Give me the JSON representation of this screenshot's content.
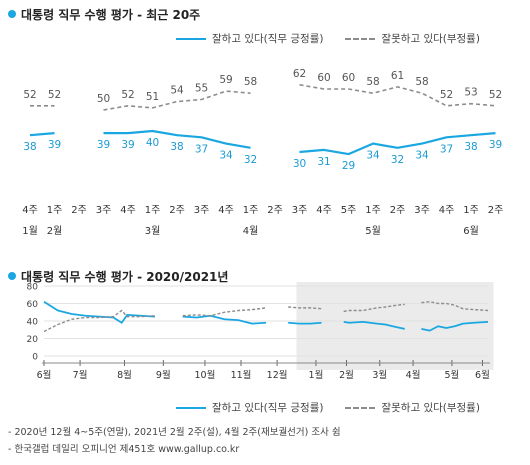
{
  "panel1": {
    "title": "대통령 직무 수행 평가 - 최근 20주",
    "legend_approve": "잘하고 있다(직무 긍정률)",
    "legend_disapprove": "잘못하고 있다(부정률)"
  },
  "panel2": {
    "title": "대통령 직무 수행 평가 - 2020/2021년",
    "legend_approve": "잘하고 있다(직무 긍정률)",
    "legend_disapprove": "잘못하고 있다(부정률)"
  },
  "footnotes": [
    "- 2020년 12월 4~5주(연말), 2021년 2월 2주(설), 4월 2주(재보궐선거) 조사 쉼",
    "- 한국갤럽 데일리 오피니언 제451호 www.gallup.co.kr"
  ],
  "colors": {
    "approve": "#1aa7e1",
    "disapprove": "#8c8c8c",
    "shade": "#ebebeb"
  },
  "chart_data": [
    {
      "type": "line",
      "title": "대통령 직무 수행 평가 - 최근 20주",
      "x": [
        "4주",
        "1주",
        "2주",
        "3주",
        "4주",
        "1주",
        "2주",
        "3주",
        "4주",
        "1주",
        "2주",
        "3주",
        "4주",
        "5주",
        "1주",
        "2주",
        "3주",
        "4주",
        "1주",
        "2주"
      ],
      "month_labels": [
        {
          "index": 0,
          "label": "1월"
        },
        {
          "index": 1,
          "label": "2월"
        },
        {
          "index": 5,
          "label": "3월"
        },
        {
          "index": 9,
          "label": "4월"
        },
        {
          "index": 14,
          "label": "5월"
        },
        {
          "index": 18,
          "label": "6월"
        }
      ],
      "series": [
        {
          "name": "잘하고 있다(직무 긍정률)",
          "values": [
            38,
            39,
            null,
            39,
            39,
            40,
            38,
            37,
            34,
            32,
            null,
            30,
            31,
            29,
            34,
            32,
            34,
            37,
            38,
            39
          ]
        },
        {
          "name": "잘못하고 있다(부정률)",
          "values": [
            52,
            52,
            null,
            50,
            52,
            51,
            54,
            55,
            59,
            58,
            null,
            62,
            60,
            60,
            58,
            61,
            58,
            52,
            53,
            52
          ]
        }
      ],
      "ylim": [
        0,
        100
      ],
      "grid": false,
      "legend": "top-right"
    },
    {
      "type": "line",
      "title": "대통령 직무 수행 평가 - 2020/2021년",
      "x_labels": [
        "6월",
        "7월",
        "8월",
        "9월",
        "10월",
        "11월",
        "12월",
        "1월",
        "2월",
        "3월",
        "4월",
        "5월",
        "6월"
      ],
      "yticks": [
        0,
        20,
        40,
        60,
        80
      ],
      "ylim": [
        0,
        80
      ],
      "shaded_period": "1월-6월",
      "series": [
        {
          "name": "잘하고 있다(직무 긍정률)",
          "values": [
            [
              0,
              62
            ],
            [
              0.5,
              52
            ],
            [
              1,
              48
            ],
            [
              1.5,
              46
            ],
            [
              2,
              45
            ],
            [
              2.5,
              44
            ],
            [
              2.8,
              38
            ],
            [
              3,
              47
            ],
            [
              3.5,
              46
            ],
            [
              4,
              45
            ],
            null,
            [
              5,
              45
            ],
            [
              5.5,
              44
            ],
            [
              6,
              46
            ],
            [
              6.5,
              42
            ],
            [
              7,
              41
            ],
            [
              7.5,
              37
            ],
            [
              8,
              38
            ],
            null,
            [
              8.8,
              38
            ],
            [
              9.2,
              37
            ],
            [
              9.6,
              37
            ],
            [
              10,
              38
            ],
            null,
            [
              10.8,
              39
            ],
            [
              11,
              38
            ],
            [
              11.5,
              39
            ],
            [
              12,
              37
            ],
            [
              12.3,
              36
            ],
            [
              12.7,
              33
            ],
            [
              13,
              31
            ],
            null,
            [
              13.6,
              31
            ],
            [
              13.9,
              29
            ],
            [
              14.2,
              34
            ],
            [
              14.5,
              32
            ],
            [
              14.8,
              34
            ],
            [
              15.1,
              37
            ],
            [
              15.5,
              38
            ],
            [
              16,
              39
            ]
          ]
        },
        {
          "name": "잘못하고 있다(부정률)",
          "values": [
            [
              0,
              28
            ],
            [
              0.5,
              36
            ],
            [
              1,
              42
            ],
            [
              1.5,
              44
            ],
            [
              2,
              44
            ],
            [
              2.5,
              45
            ],
            [
              2.8,
              52
            ],
            [
              3,
              45
            ],
            [
              3.5,
              45
            ],
            [
              4,
              46
            ],
            null,
            [
              5,
              46
            ],
            [
              5.5,
              47
            ],
            [
              6,
              46
            ],
            [
              6.5,
              50
            ],
            [
              7,
              52
            ],
            [
              7.5,
              53
            ],
            [
              8,
              55
            ],
            null,
            [
              8.8,
              56
            ],
            [
              9.2,
              55
            ],
            [
              9.6,
              55
            ],
            [
              10,
              54
            ],
            null,
            [
              10.8,
              51
            ],
            [
              11,
              52
            ],
            [
              11.5,
              52
            ],
            [
              12,
              55
            ],
            [
              12.3,
              56
            ],
            [
              12.7,
              58
            ],
            [
              13,
              59
            ],
            null,
            [
              13.6,
              61
            ],
            [
              13.9,
              62
            ],
            [
              14.2,
              60
            ],
            [
              14.5,
              60
            ],
            [
              14.8,
              58
            ],
            [
              15.1,
              54
            ],
            [
              15.5,
              53
            ],
            [
              16,
              52
            ]
          ]
        }
      ],
      "grid": true,
      "legend": "bottom-right"
    }
  ]
}
